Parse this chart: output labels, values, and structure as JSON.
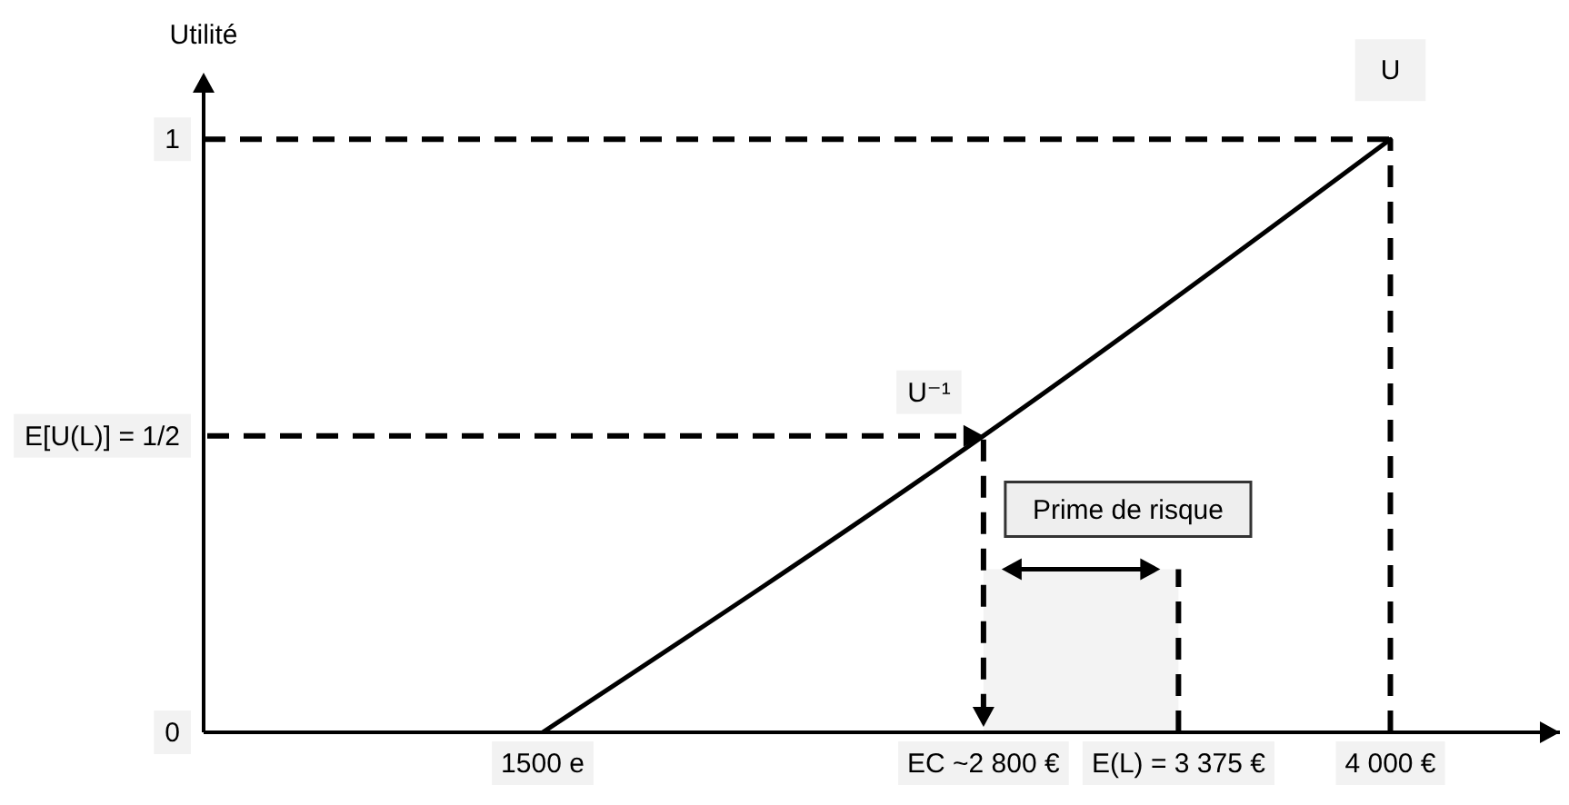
{
  "chart_data": {
    "type": "line",
    "ylabel": "Utilité",
    "x": [
      1500,
      2800,
      4000
    ],
    "series": [
      {
        "name": "U",
        "color": "#000000",
        "values": [
          0,
          0.5,
          1
        ]
      }
    ],
    "xlim": [
      500,
      4500
    ],
    "xticks": [
      {
        "value": 1500,
        "label": "1500 e"
      },
      {
        "value": 2800,
        "label": "EC ~2 800 €"
      },
      {
        "value": 3375,
        "label": "E(L) = 3 375 €"
      },
      {
        "value": 4000,
        "label": "4 000 €"
      }
    ],
    "ylim": [
      0,
      1.1
    ],
    "yticks": [
      0,
      {
        "value": 0.5,
        "label": "E[U(L)] = 1/2"
      },
      1
    ],
    "ref_lines": [
      {
        "axis": "y",
        "value": 1,
        "line_style": "dashed",
        "color": "#000000"
      },
      {
        "axis": "x",
        "value": 4000,
        "line_style": "dashed",
        "color": "#000000"
      },
      {
        "axis": "x",
        "value": 3375,
        "line_style": "dashed",
        "color": "#000000"
      }
    ],
    "bands": [
      {
        "axis": "x",
        "from": 2800,
        "to": 3375,
        "label": "Prime de risque",
        "color": "#f3f3f3"
      }
    ],
    "annotations": [
      {
        "text": "U⁻¹",
        "x": 2800,
        "y": 0.5
      }
    ]
  }
}
